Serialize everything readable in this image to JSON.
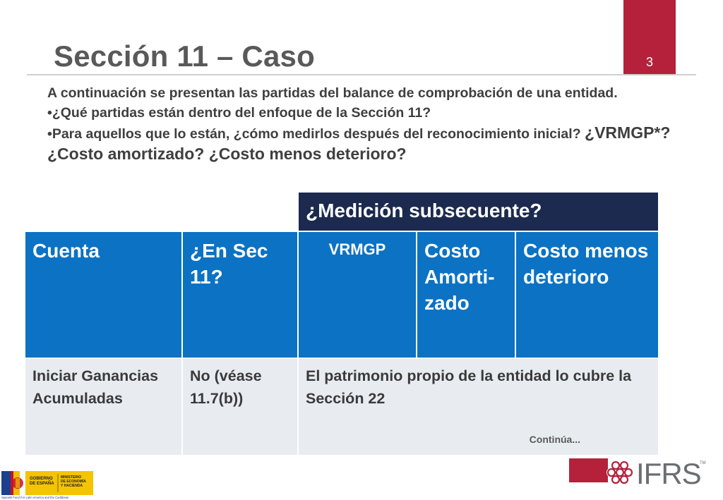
{
  "slide": {
    "title": "Sección 11 – Caso",
    "page_number": "3"
  },
  "intro": {
    "line1": "A continuación se presentan las partidas del balance de comprobación de una entidad.",
    "bullet1": "•¿Qué partidas están dentro del enfoque de la Sección 11?",
    "bullet2_start": "•Para aquellos que lo están, ¿cómo medirlos después del reconocimiento inicial?",
    "bullet2_end": "¿VRMGP*? ¿Costo amortizado? ¿Costo menos deterioro?"
  },
  "table": {
    "measurement_header": "¿Medición subsecuente?",
    "headers": [
      "Cuenta",
      "¿En Sec 11?",
      "VRMGP",
      "Costo Amorti-zado",
      "Costo menos deterioro"
    ],
    "rows": [
      {
        "cuenta": "Iniciar Ganancias Acumuladas",
        "en_sec_11": "No (véase 11.7(b))",
        "medicion": "El patrimonio propio de la entidad lo cubre la Sección 22"
      }
    ],
    "continued_note": "Continúa..."
  },
  "footer": {
    "gov_logo_text": [
      "GOBIERNO DE ESPAÑA",
      "MINISTERIO DE ECONOMÍA Y HACIENDA",
      "Spanish Fund For Latin America and the Caribbean"
    ],
    "ifrs_logo_text": "IFRS",
    "ifrs_tm": "TM"
  },
  "colors": {
    "accent_red": "#b5213b",
    "header_blue": "#0b72c4",
    "header_navy": "#1b2a4e",
    "row_gray": "#e8ecf1"
  }
}
